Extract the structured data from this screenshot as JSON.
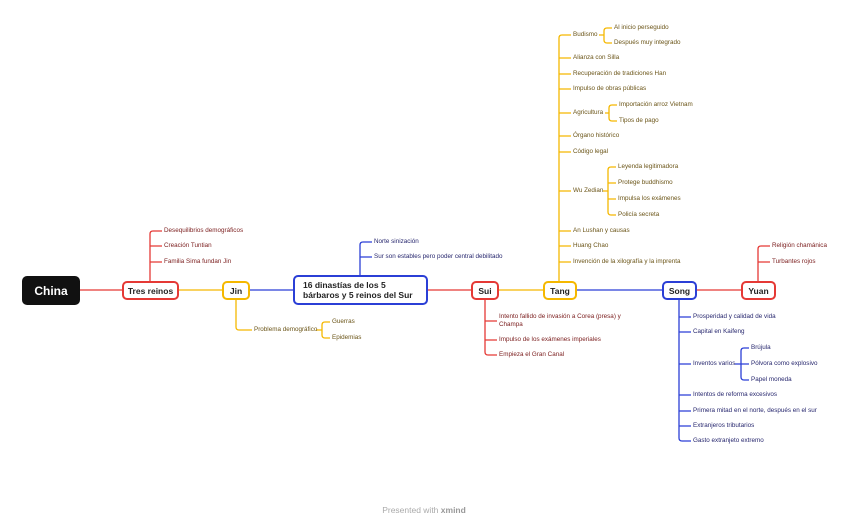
{
  "root": "China",
  "colors": {
    "red": "#e53935",
    "yellow": "#f5b800",
    "blue": "#2b3fd6",
    "root_bg": "#111111"
  },
  "topics": {
    "tres_reinos": {
      "label": "Tres reinos",
      "children": [
        "Desequilibrios demográficos",
        "Creación Tuntian",
        "Familia Sima fundan Jin"
      ]
    },
    "jin": {
      "label": "Jin",
      "children": [
        {
          "label": "Problema demográfico",
          "children": [
            "Guerras",
            "Epidemias"
          ]
        }
      ]
    },
    "dinastias": {
      "label": "16 dinastías de los 5 bárbaros y 5 reinos del Sur",
      "children": [
        "Norte sinización",
        "Sur son estables pero poder central debilitado"
      ]
    },
    "sui": {
      "label": "Sui",
      "children": [
        "Intento fallido de invasión a Corea (presa) y Champa",
        "Impulso de los exámenes imperiales",
        "Empieza el Gran Canal"
      ]
    },
    "tang": {
      "label": "Tang",
      "children": [
        {
          "label": "Budismo",
          "children": [
            "Al inicio perseguido",
            "Después muy integrado"
          ]
        },
        "Alianza con Silla",
        "Recuperación de tradiciones Han",
        "Impulso de obras públicas",
        {
          "label": "Agricultura",
          "children": [
            "Importación arroz Vietnam",
            "Tipos de pago"
          ]
        },
        "Órgano histórico",
        "Código legal",
        {
          "label": "Wu Zedian",
          "children": [
            "Leyenda legitimadora",
            "Protege buddhismo",
            "Impulsa los exámenes",
            "Policía secreta"
          ]
        },
        "An Lushan y causas",
        "Huang Chao",
        "Invención de la xilografía y la imprenta"
      ]
    },
    "song": {
      "label": "Song",
      "children": [
        "Prosperidad y calidad de vida",
        "Capital en Kaifeng",
        {
          "label": "Inventos varios",
          "children": [
            "Brújula",
            "Pólvora como explosivo",
            "Papel moneda"
          ]
        },
        "Intentos de reforma excesivos",
        "Primera mitad en el norte, después en el sur",
        "Extranjeros tributarios",
        "Gasto extranjeto extremo"
      ]
    },
    "yuan": {
      "label": "Yuan",
      "children": [
        "Religión chamánica",
        "Turbantes rojos"
      ]
    }
  },
  "footer": {
    "prefix": "Presented with ",
    "brand": "xmind"
  }
}
